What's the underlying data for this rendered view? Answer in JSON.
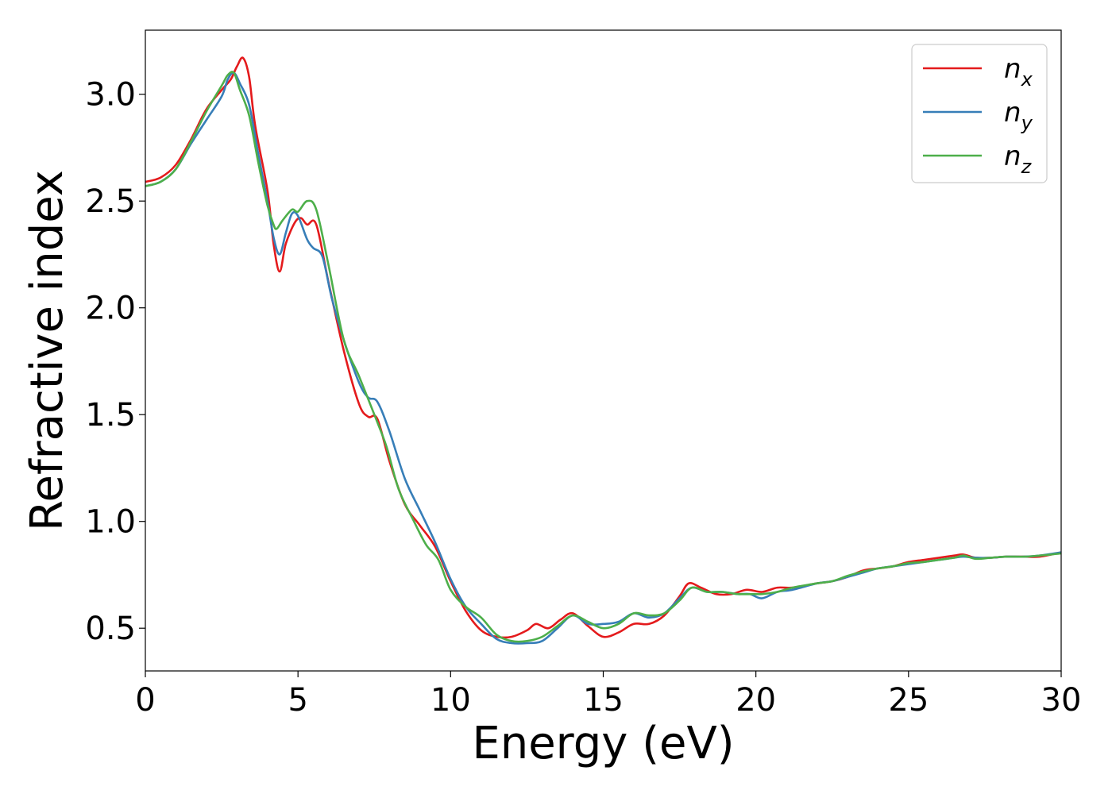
{
  "chart_data": {
    "type": "line",
    "xlabel": "Energy (eV)",
    "ylabel": "Refractive index",
    "xlim": [
      0,
      30
    ],
    "ylim": [
      0.3,
      3.3
    ],
    "xticks": [
      0,
      5,
      10,
      15,
      20,
      25,
      30
    ],
    "yticks": [
      0.5,
      1.0,
      1.5,
      2.0,
      2.5,
      3.0
    ],
    "xtick_labels": [
      "0",
      "5",
      "10",
      "15",
      "20",
      "25",
      "30"
    ],
    "ytick_labels": [
      "0.5",
      "1.0",
      "1.5",
      "2.0",
      "2.5",
      "3.0"
    ],
    "grid": false,
    "legend_position": "top-right",
    "series": [
      {
        "name": "n_x",
        "label_main": "n",
        "label_sub": "x",
        "color": "#e41a1c",
        "points": [
          [
            0,
            2.59
          ],
          [
            0.5,
            2.61
          ],
          [
            1,
            2.67
          ],
          [
            1.5,
            2.79
          ],
          [
            2,
            2.93
          ],
          [
            2.5,
            3.02
          ],
          [
            2.8,
            3.07
          ],
          [
            3.0,
            3.13
          ],
          [
            3.2,
            3.17
          ],
          [
            3.4,
            3.08
          ],
          [
            3.6,
            2.85
          ],
          [
            4.0,
            2.55
          ],
          [
            4.2,
            2.3
          ],
          [
            4.4,
            2.17
          ],
          [
            4.6,
            2.3
          ],
          [
            4.9,
            2.4
          ],
          [
            5.1,
            2.42
          ],
          [
            5.3,
            2.39
          ],
          [
            5.6,
            2.39
          ],
          [
            6.0,
            2.12
          ],
          [
            6.5,
            1.8
          ],
          [
            7.0,
            1.55
          ],
          [
            7.3,
            1.49
          ],
          [
            7.6,
            1.48
          ],
          [
            8.0,
            1.28
          ],
          [
            8.5,
            1.08
          ],
          [
            9.0,
            0.98
          ],
          [
            9.5,
            0.88
          ],
          [
            10.0,
            0.72
          ],
          [
            10.5,
            0.58
          ],
          [
            11.0,
            0.49
          ],
          [
            11.5,
            0.46
          ],
          [
            12.0,
            0.46
          ],
          [
            12.5,
            0.49
          ],
          [
            12.8,
            0.52
          ],
          [
            13.2,
            0.5
          ],
          [
            13.6,
            0.54
          ],
          [
            14.0,
            0.57
          ],
          [
            14.5,
            0.51
          ],
          [
            15.0,
            0.46
          ],
          [
            15.5,
            0.48
          ],
          [
            16.0,
            0.52
          ],
          [
            16.5,
            0.52
          ],
          [
            17.0,
            0.56
          ],
          [
            17.5,
            0.65
          ],
          [
            17.8,
            0.71
          ],
          [
            18.2,
            0.69
          ],
          [
            18.7,
            0.66
          ],
          [
            19.2,
            0.66
          ],
          [
            19.7,
            0.68
          ],
          [
            20.2,
            0.67
          ],
          [
            20.7,
            0.69
          ],
          [
            21.2,
            0.69
          ],
          [
            22.0,
            0.71
          ],
          [
            22.5,
            0.72
          ],
          [
            23.0,
            0.74
          ],
          [
            23.5,
            0.77
          ],
          [
            24.0,
            0.78
          ],
          [
            24.5,
            0.79
          ],
          [
            25.0,
            0.81
          ],
          [
            25.5,
            0.82
          ],
          [
            26.0,
            0.83
          ],
          [
            26.5,
            0.84
          ],
          [
            26.8,
            0.845
          ],
          [
            27.2,
            0.83
          ],
          [
            27.7,
            0.83
          ],
          [
            28.2,
            0.835
          ],
          [
            28.8,
            0.835
          ],
          [
            29.3,
            0.835
          ],
          [
            30.0,
            0.855
          ]
        ]
      },
      {
        "name": "n_y",
        "label_main": "n",
        "label_sub": "y",
        "color": "#377eb8",
        "points": [
          [
            0,
            2.57
          ],
          [
            0.5,
            2.59
          ],
          [
            1,
            2.65
          ],
          [
            1.5,
            2.77
          ],
          [
            2,
            2.88
          ],
          [
            2.5,
            2.99
          ],
          [
            2.7,
            3.07
          ],
          [
            2.9,
            3.1
          ],
          [
            3.1,
            3.05
          ],
          [
            3.4,
            2.95
          ],
          [
            3.7,
            2.72
          ],
          [
            4.0,
            2.5
          ],
          [
            4.2,
            2.33
          ],
          [
            4.4,
            2.25
          ],
          [
            4.6,
            2.35
          ],
          [
            4.8,
            2.44
          ],
          [
            5.0,
            2.43
          ],
          [
            5.3,
            2.32
          ],
          [
            5.5,
            2.28
          ],
          [
            5.8,
            2.24
          ],
          [
            6.1,
            2.05
          ],
          [
            6.5,
            1.85
          ],
          [
            7.0,
            1.65
          ],
          [
            7.3,
            1.58
          ],
          [
            7.6,
            1.56
          ],
          [
            8.0,
            1.42
          ],
          [
            8.5,
            1.2
          ],
          [
            9.0,
            1.05
          ],
          [
            9.5,
            0.9
          ],
          [
            10.0,
            0.73
          ],
          [
            10.5,
            0.6
          ],
          [
            11.0,
            0.52
          ],
          [
            11.5,
            0.45
          ],
          [
            12.0,
            0.43
          ],
          [
            12.5,
            0.43
          ],
          [
            13.0,
            0.44
          ],
          [
            13.5,
            0.5
          ],
          [
            14.0,
            0.56
          ],
          [
            14.5,
            0.52
          ],
          [
            15.0,
            0.52
          ],
          [
            15.5,
            0.53
          ],
          [
            16.0,
            0.57
          ],
          [
            16.5,
            0.55
          ],
          [
            17.0,
            0.57
          ],
          [
            17.5,
            0.64
          ],
          [
            17.9,
            0.69
          ],
          [
            18.4,
            0.67
          ],
          [
            18.9,
            0.67
          ],
          [
            19.4,
            0.66
          ],
          [
            19.8,
            0.66
          ],
          [
            20.2,
            0.64
          ],
          [
            20.7,
            0.67
          ],
          [
            21.2,
            0.68
          ],
          [
            22.0,
            0.71
          ],
          [
            22.5,
            0.72
          ],
          [
            23.0,
            0.74
          ],
          [
            23.5,
            0.76
          ],
          [
            24.0,
            0.78
          ],
          [
            24.5,
            0.79
          ],
          [
            25.0,
            0.8
          ],
          [
            25.5,
            0.81
          ],
          [
            26.0,
            0.82
          ],
          [
            26.5,
            0.83
          ],
          [
            26.8,
            0.835
          ],
          [
            27.2,
            0.83
          ],
          [
            27.7,
            0.83
          ],
          [
            28.2,
            0.835
          ],
          [
            28.8,
            0.835
          ],
          [
            29.3,
            0.84
          ],
          [
            30.0,
            0.855
          ]
        ]
      },
      {
        "name": "n_z",
        "label_main": "n",
        "label_sub": "z",
        "color": "#4daf4a",
        "points": [
          [
            0,
            2.57
          ],
          [
            0.5,
            2.59
          ],
          [
            1,
            2.65
          ],
          [
            1.5,
            2.78
          ],
          [
            2,
            2.92
          ],
          [
            2.5,
            3.04
          ],
          [
            2.7,
            3.09
          ],
          [
            2.9,
            3.1
          ],
          [
            3.1,
            3.02
          ],
          [
            3.4,
            2.9
          ],
          [
            3.7,
            2.68
          ],
          [
            4.0,
            2.48
          ],
          [
            4.2,
            2.39
          ],
          [
            4.3,
            2.37
          ],
          [
            4.5,
            2.41
          ],
          [
            4.8,
            2.46
          ],
          [
            5.0,
            2.45
          ],
          [
            5.3,
            2.5
          ],
          [
            5.6,
            2.46
          ],
          [
            6.0,
            2.2
          ],
          [
            6.5,
            1.85
          ],
          [
            7.0,
            1.68
          ],
          [
            7.5,
            1.5
          ],
          [
            7.9,
            1.35
          ],
          [
            8.3,
            1.15
          ],
          [
            8.8,
            1.0
          ],
          [
            9.2,
            0.89
          ],
          [
            9.6,
            0.82
          ],
          [
            10.0,
            0.68
          ],
          [
            10.5,
            0.6
          ],
          [
            11.0,
            0.55
          ],
          [
            11.5,
            0.47
          ],
          [
            12.0,
            0.44
          ],
          [
            12.5,
            0.44
          ],
          [
            13.0,
            0.46
          ],
          [
            13.5,
            0.51
          ],
          [
            14.0,
            0.56
          ],
          [
            14.5,
            0.53
          ],
          [
            15.0,
            0.5
          ],
          [
            15.5,
            0.52
          ],
          [
            16.0,
            0.57
          ],
          [
            16.5,
            0.56
          ],
          [
            17.0,
            0.57
          ],
          [
            17.5,
            0.63
          ],
          [
            17.9,
            0.69
          ],
          [
            18.4,
            0.67
          ],
          [
            18.9,
            0.67
          ],
          [
            19.4,
            0.66
          ],
          [
            19.9,
            0.66
          ],
          [
            20.2,
            0.66
          ],
          [
            20.7,
            0.67
          ],
          [
            21.2,
            0.69
          ],
          [
            22.0,
            0.71
          ],
          [
            22.5,
            0.72
          ],
          [
            23.0,
            0.745
          ],
          [
            23.5,
            0.765
          ],
          [
            24.0,
            0.78
          ],
          [
            24.5,
            0.79
          ],
          [
            25.0,
            0.805
          ],
          [
            25.5,
            0.81
          ],
          [
            26.0,
            0.82
          ],
          [
            26.5,
            0.83
          ],
          [
            26.8,
            0.84
          ],
          [
            27.2,
            0.825
          ],
          [
            27.7,
            0.83
          ],
          [
            28.2,
            0.835
          ],
          [
            28.8,
            0.835
          ],
          [
            29.3,
            0.84
          ],
          [
            30.0,
            0.85
          ]
        ]
      }
    ]
  }
}
